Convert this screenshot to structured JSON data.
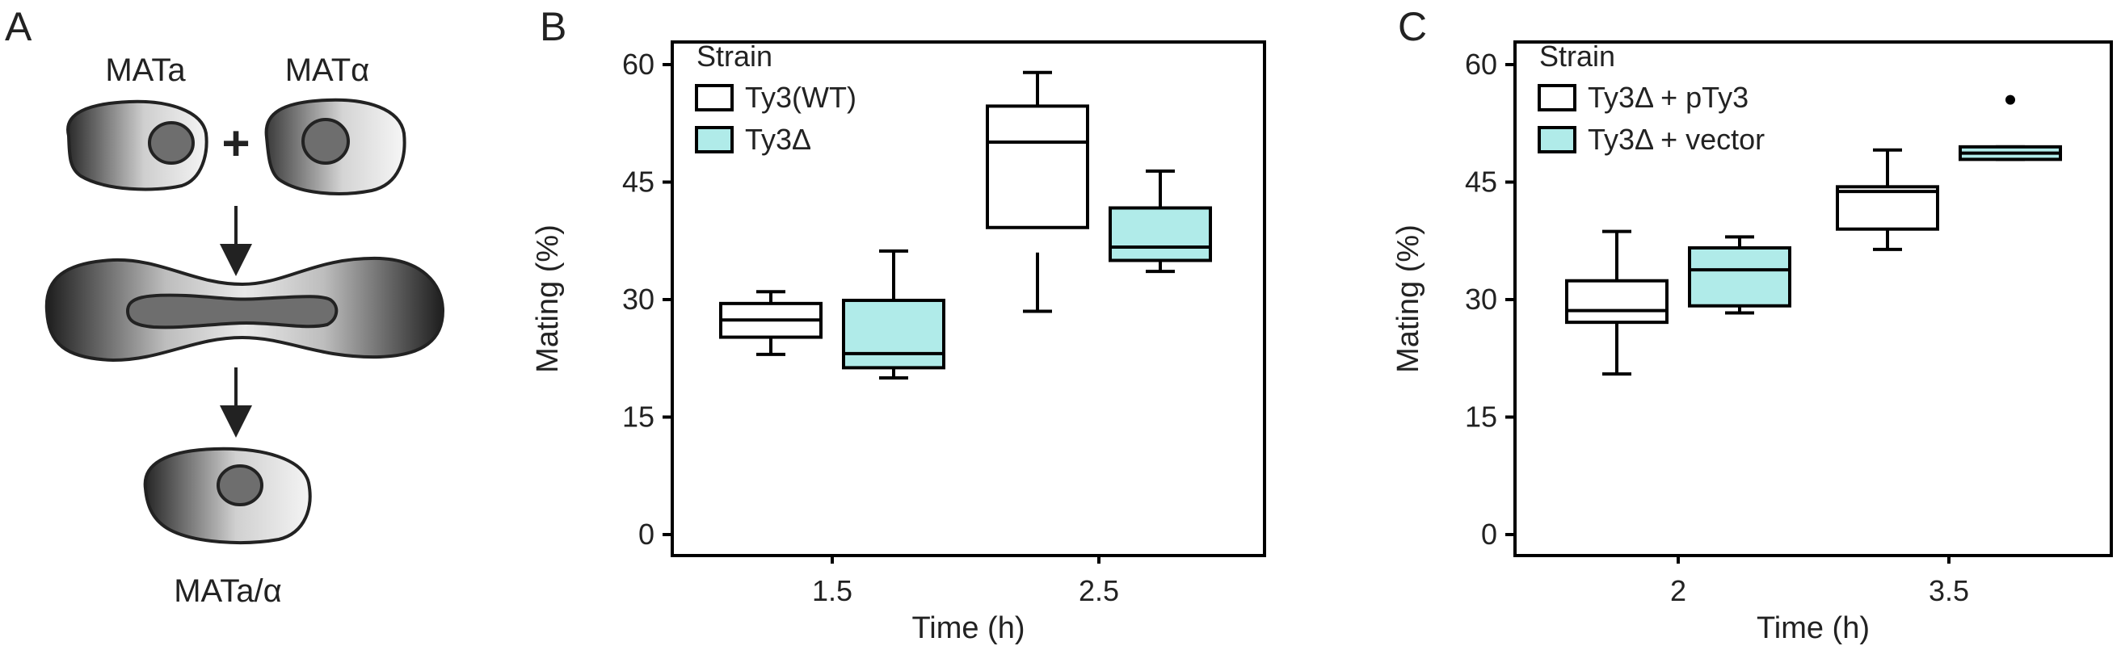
{
  "panels": {
    "a": {
      "letter": "A",
      "parent_left": "MATa",
      "parent_right": "MATα",
      "plus": "+",
      "product": "MATa/α"
    }
  },
  "chart_data": [
    {
      "letter": "B",
      "type": "box",
      "title": "",
      "xlabel": "Time (h)",
      "ylabel": "Mating (%)",
      "ylim": [
        0,
        60
      ],
      "yticks": [
        0,
        15,
        30,
        45,
        60
      ],
      "categories": [
        "1.5",
        "2.5"
      ],
      "legend_title": "Strain",
      "legend_position": "top-left",
      "series": [
        {
          "name": "Ty3(WT)",
          "color": "#ffffff",
          "stroke": "#000000",
          "boxes": [
            {
              "min": 23,
              "q1": 25.2,
              "median": 27.4,
              "q3": 29.5,
              "max": 31,
              "outliers": []
            },
            {
              "min": 28.5,
              "q1": 39.2,
              "median": 50.1,
              "q3": 54.7,
              "max": 59,
              "outliers": [],
              "lower_whisker_gap": 36
            }
          ]
        },
        {
          "name": "Ty3Δ",
          "color": "#b0ebe9",
          "stroke": "#000000",
          "boxes": [
            {
              "min": 20,
              "q1": 21.3,
              "median": 23.1,
              "q3": 29.9,
              "max": 36.2,
              "outliers": []
            },
            {
              "min": 33.6,
              "q1": 35,
              "median": 36.7,
              "q3": 41.7,
              "max": 46.4,
              "outliers": []
            }
          ]
        }
      ]
    },
    {
      "letter": "C",
      "type": "box",
      "title": "",
      "xlabel": "Time (h)",
      "ylabel": "Mating (%)",
      "ylim": [
        0,
        60
      ],
      "yticks": [
        0,
        15,
        30,
        45,
        60
      ],
      "categories": [
        "2",
        "3.5"
      ],
      "legend_title": "Strain",
      "legend_position": "top-left",
      "series": [
        {
          "name": "Ty3Δ + pTy3",
          "color": "#ffffff",
          "stroke": "#000000",
          "boxes": [
            {
              "min": 20.5,
              "q1": 27.1,
              "median": 28.6,
              "q3": 32.4,
              "max": 38.7,
              "outliers": []
            },
            {
              "min": 36.4,
              "q1": 39,
              "median": 43.8,
              "q3": 44.4,
              "max": 49.1,
              "outliers": []
            }
          ]
        },
        {
          "name": "Ty3Δ + vector",
          "color": "#b0ebe9",
          "stroke": "#000000",
          "boxes": [
            {
              "min": 28.3,
              "q1": 29.2,
              "median": 33.8,
              "q3": 36.6,
              "max": 38,
              "outliers": []
            },
            {
              "min": 47.9,
              "q1": 47.9,
              "median": 48.7,
              "q3": 49.5,
              "max": 49.5,
              "outliers": [
                55.5
              ]
            }
          ]
        }
      ]
    }
  ]
}
